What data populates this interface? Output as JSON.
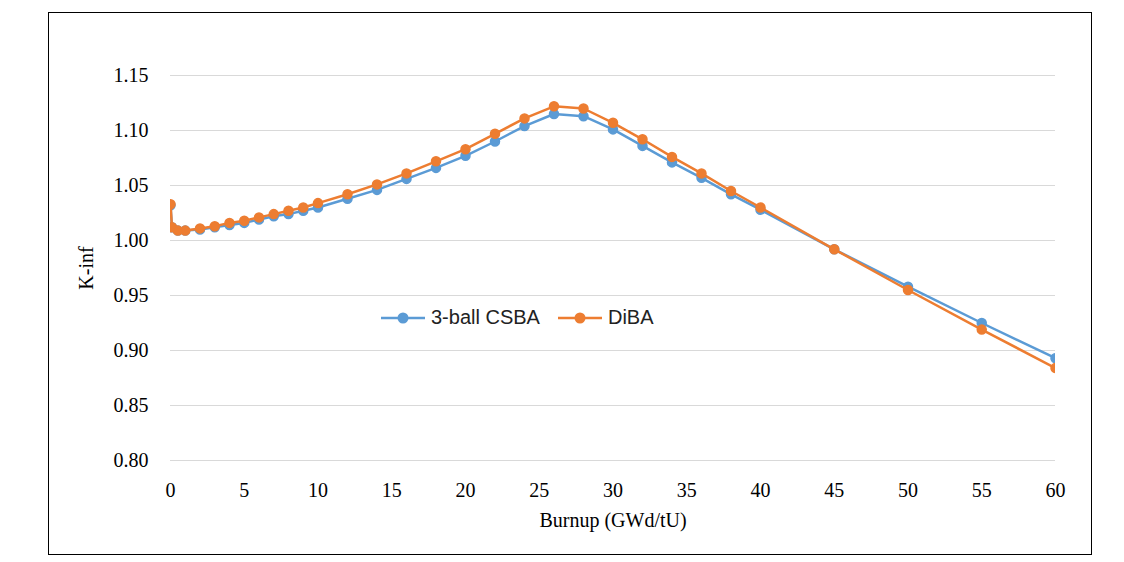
{
  "chart_data": {
    "type": "line",
    "x_label": "Burnup (GWd/tU)",
    "y_label": "K-inf",
    "x": [
      0,
      0.1,
      0.5,
      1,
      2,
      3,
      4,
      5,
      6,
      7,
      8,
      9,
      10,
      12,
      14,
      16,
      18,
      20,
      22,
      24,
      26,
      28,
      30,
      32,
      34,
      36,
      38,
      40,
      45,
      50,
      55,
      60
    ],
    "series": [
      {
        "name": "3-ball CSBA",
        "color": "#5b9bd5",
        "marker": "circle",
        "values": [
          1.032,
          1.012,
          1.009,
          1.009,
          1.01,
          1.012,
          1.014,
          1.016,
          1.019,
          1.022,
          1.024,
          1.027,
          1.03,
          1.038,
          1.046,
          1.056,
          1.066,
          1.077,
          1.09,
          1.104,
          1.115,
          1.113,
          1.101,
          1.086,
          1.071,
          1.057,
          1.042,
          1.028,
          0.992,
          0.958,
          0.925,
          0.893
        ]
      },
      {
        "name": "DiBA",
        "color": "#ed7d31",
        "marker": "circle",
        "values": [
          1.033,
          1.012,
          1.009,
          1.009,
          1.011,
          1.013,
          1.016,
          1.018,
          1.021,
          1.024,
          1.027,
          1.03,
          1.034,
          1.042,
          1.051,
          1.061,
          1.072,
          1.083,
          1.097,
          1.111,
          1.122,
          1.12,
          1.107,
          1.092,
          1.076,
          1.061,
          1.045,
          1.03,
          0.992,
          0.955,
          0.919,
          0.884
        ]
      }
    ],
    "xlim": [
      0,
      60
    ],
    "xticks": [
      0,
      5,
      10,
      15,
      20,
      25,
      30,
      35,
      40,
      45,
      50,
      55,
      60
    ],
    "ylim": [
      0.8,
      1.15
    ],
    "yticks": [
      {
        "value": 0.8,
        "label": "0.80"
      },
      0.85,
      {
        "value": 0.9,
        "label": "0.90"
      },
      0.95,
      {
        "value": 1.0,
        "label": "1.00"
      },
      1.05,
      {
        "value": 1.1,
        "label": "1.10"
      },
      1.15
    ],
    "grid": "y",
    "legend": "center"
  }
}
